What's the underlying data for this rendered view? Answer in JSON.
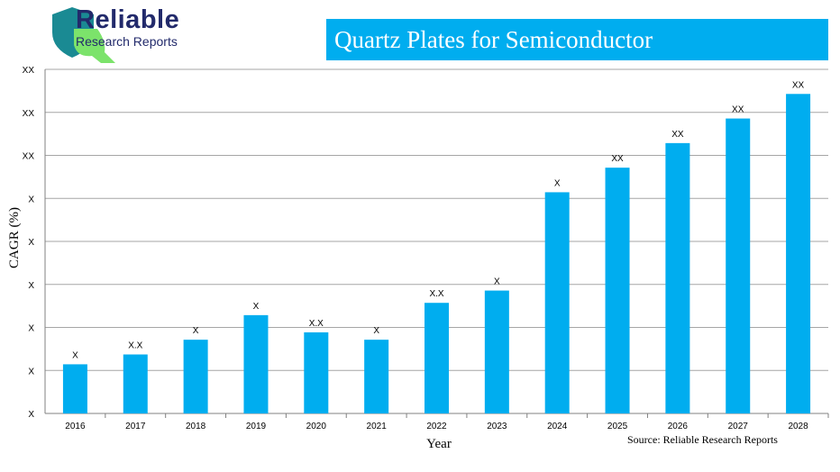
{
  "brand": {
    "name": "Reliable",
    "tagline": "Research Reports",
    "colors": {
      "navy": "#222a6b",
      "teal": "#1a8a93",
      "green": "#7ce36b"
    }
  },
  "header": {
    "title": "Quartz Plates for Semiconductor"
  },
  "source_note": "Source: Reliable Research Reports",
  "chart_data": {
    "type": "bar",
    "title": "Quartz Plates for Semiconductor",
    "xlabel": "Year",
    "ylabel": "CAGR (%)",
    "y_tick_labels": [
      "X",
      "X",
      "X",
      "X",
      "X",
      "X",
      "XX",
      "XX",
      "XX"
    ],
    "categories": [
      "2016",
      "2017",
      "2018",
      "2019",
      "2020",
      "2021",
      "2022",
      "2023",
      "2024",
      "2025",
      "2026",
      "2027",
      "2028"
    ],
    "values": [
      1.0,
      1.2,
      1.5,
      2.0,
      1.65,
      1.5,
      2.25,
      2.5,
      4.5,
      5.0,
      5.5,
      6.0,
      6.5
    ],
    "data_labels": [
      "X",
      "X.X",
      "X",
      "X",
      "X.X",
      "X",
      "X.X",
      "X",
      "X",
      "XX",
      "XX",
      "XX",
      "XX"
    ],
    "ylim": [
      0,
      7
    ],
    "grid": true,
    "bar_color": "#00adef"
  }
}
